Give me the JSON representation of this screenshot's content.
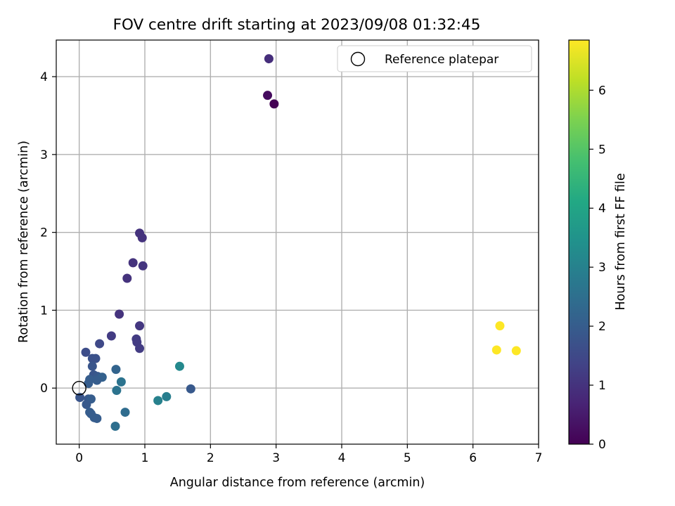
{
  "chart_data": {
    "type": "scatter",
    "title": "FOV centre drift starting at 2023/09/08 01:32:45",
    "xlabel": "Angular distance from reference (arcmin)",
    "ylabel": "Rotation from reference (arcmin)",
    "xlim": [
      -0.35,
      7.0
    ],
    "ylim": [
      -0.72,
      4.47
    ],
    "xticks": [
      0,
      1,
      2,
      3,
      4,
      5,
      6,
      7
    ],
    "yticks": [
      0,
      1,
      2,
      3,
      4
    ],
    "grid": true,
    "legend": {
      "placement": "top-right",
      "entries": [
        "Reference platepar"
      ]
    },
    "reference_point": {
      "x": 0,
      "y": 0
    },
    "colorbar": {
      "label": "Hours from first FF file",
      "range": [
        0,
        6.85
      ],
      "ticks": [
        0,
        1,
        2,
        3,
        4,
        5,
        6
      ],
      "colormap": "viridis"
    },
    "series": [
      {
        "points": [
          {
            "x": 2.97,
            "y": 3.65,
            "c": 0.0
          },
          {
            "x": 2.87,
            "y": 3.76,
            "c": 0.2
          },
          {
            "x": 2.89,
            "y": 4.23,
            "c": 0.9
          },
          {
            "x": 0.92,
            "y": 1.99,
            "c": 1.0
          },
          {
            "x": 0.96,
            "y": 1.93,
            "c": 1.0
          },
          {
            "x": 0.82,
            "y": 1.61,
            "c": 1.0
          },
          {
            "x": 0.97,
            "y": 1.57,
            "c": 1.05
          },
          {
            "x": 0.73,
            "y": 1.41,
            "c": 1.0
          },
          {
            "x": 0.61,
            "y": 0.95,
            "c": 1.0
          },
          {
            "x": 0.92,
            "y": 0.8,
            "c": 1.1
          },
          {
            "x": 0.49,
            "y": 0.67,
            "c": 1.2
          },
          {
            "x": 0.87,
            "y": 0.63,
            "c": 1.2
          },
          {
            "x": 0.88,
            "y": 0.59,
            "c": 1.2
          },
          {
            "x": 0.92,
            "y": 0.51,
            "c": 1.2
          },
          {
            "x": 0.31,
            "y": 0.57,
            "c": 1.5
          },
          {
            "x": 0.1,
            "y": 0.46,
            "c": 1.6
          },
          {
            "x": 0.2,
            "y": 0.38,
            "c": 1.7
          },
          {
            "x": 0.25,
            "y": 0.38,
            "c": 1.7
          },
          {
            "x": 0.2,
            "y": 0.28,
            "c": 1.8
          },
          {
            "x": 0.56,
            "y": 0.24,
            "c": 2.2
          },
          {
            "x": 0.22,
            "y": 0.17,
            "c": 1.8
          },
          {
            "x": 0.28,
            "y": 0.15,
            "c": 1.9
          },
          {
            "x": 0.35,
            "y": 0.14,
            "c": 2.1
          },
          {
            "x": 0.16,
            "y": 0.11,
            "c": 2.0
          },
          {
            "x": 0.27,
            "y": 0.1,
            "c": 2.0
          },
          {
            "x": 0.64,
            "y": 0.08,
            "c": 2.6
          },
          {
            "x": 0.14,
            "y": 0.06,
            "c": 2.0
          },
          {
            "x": 1.7,
            "y": -0.01,
            "c": 1.9
          },
          {
            "x": 0.57,
            "y": -0.03,
            "c": 2.6
          },
          {
            "x": 0.01,
            "y": -0.12,
            "c": 1.8
          },
          {
            "x": 0.14,
            "y": -0.14,
            "c": 1.9
          },
          {
            "x": 0.18,
            "y": -0.14,
            "c": 2.0
          },
          {
            "x": 1.33,
            "y": -0.11,
            "c": 2.9
          },
          {
            "x": 1.2,
            "y": -0.16,
            "c": 3.0
          },
          {
            "x": 0.11,
            "y": -0.21,
            "c": 1.9
          },
          {
            "x": 0.16,
            "y": -0.31,
            "c": 2.0
          },
          {
            "x": 0.7,
            "y": -0.31,
            "c": 2.4
          },
          {
            "x": 0.18,
            "y": -0.33,
            "c": 2.0
          },
          {
            "x": 0.23,
            "y": -0.38,
            "c": 2.0
          },
          {
            "x": 0.27,
            "y": -0.39,
            "c": 2.0
          },
          {
            "x": 0.55,
            "y": -0.49,
            "c": 2.5
          },
          {
            "x": 1.53,
            "y": 0.28,
            "c": 3.2
          },
          {
            "x": 6.41,
            "y": 0.8,
            "c": 6.85
          },
          {
            "x": 6.36,
            "y": 0.49,
            "c": 6.85
          },
          {
            "x": 6.66,
            "y": 0.48,
            "c": 6.85
          }
        ]
      }
    ]
  }
}
